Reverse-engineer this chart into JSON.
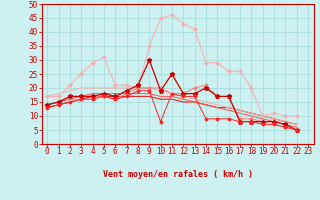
{
  "bg_color": "#cdf0f0",
  "plot_bg_color": "#cdf0f0",
  "grid_color": "#aadddd",
  "xlabel": "Vent moyen/en rafales ( km/h )",
  "xlabel_color": "#cc0000",
  "xlabel_fontsize": 6,
  "tick_color": "#cc0000",
  "tick_fontsize": 5.5,
  "xlim": [
    -0.5,
    23.5
  ],
  "ylim": [
    0,
    50
  ],
  "yticks": [
    0,
    5,
    10,
    15,
    20,
    25,
    30,
    35,
    40,
    45,
    50
  ],
  "xticks": [
    0,
    1,
    2,
    3,
    4,
    5,
    6,
    7,
    8,
    9,
    10,
    11,
    12,
    13,
    14,
    15,
    16,
    17,
    18,
    19,
    20,
    21,
    22,
    23
  ],
  "series": [
    {
      "color": "#ffaaaa",
      "marker": "D",
      "markersize": 1.5,
      "linewidth": 0.7,
      "data": [
        [
          0,
          17
        ],
        [
          1,
          17
        ],
        [
          2,
          21
        ],
        [
          3,
          25
        ],
        [
          4,
          29
        ],
        [
          5,
          31
        ],
        [
          6,
          21
        ],
        [
          7,
          21
        ],
        [
          8,
          20
        ],
        [
          9,
          35
        ],
        [
          10,
          45
        ],
        [
          11,
          46
        ],
        [
          12,
          43
        ],
        [
          13,
          41
        ],
        [
          14,
          29
        ],
        [
          15,
          29
        ],
        [
          16,
          26
        ],
        [
          17,
          26
        ],
        [
          18,
          20
        ],
        [
          19,
          10
        ],
        [
          20,
          11
        ],
        [
          21,
          10
        ],
        [
          22,
          10
        ]
      ]
    },
    {
      "color": "#ff7777",
      "marker": "D",
      "markersize": 1.5,
      "linewidth": 0.7,
      "data": [
        [
          0,
          14
        ],
        [
          1,
          15
        ],
        [
          2,
          17
        ],
        [
          3,
          17
        ],
        [
          4,
          17
        ],
        [
          5,
          17
        ],
        [
          6,
          16
        ],
        [
          7,
          18
        ],
        [
          8,
          20
        ],
        [
          9,
          20
        ],
        [
          10,
          20
        ],
        [
          11,
          18
        ],
        [
          12,
          18
        ],
        [
          13,
          20
        ],
        [
          14,
          21
        ],
        [
          15,
          17
        ],
        [
          16,
          17
        ],
        [
          17,
          9
        ],
        [
          18,
          9
        ],
        [
          19,
          8
        ],
        [
          20,
          8
        ],
        [
          21,
          7
        ],
        [
          22,
          5
        ]
      ]
    },
    {
      "color": "#cc0000",
      "marker": "*",
      "markersize": 3.5,
      "linewidth": 0.9,
      "data": [
        [
          0,
          14
        ],
        [
          1,
          15
        ],
        [
          2,
          17
        ],
        [
          3,
          17
        ],
        [
          4,
          17
        ],
        [
          5,
          18
        ],
        [
          6,
          17
        ],
        [
          7,
          19
        ],
        [
          8,
          21
        ],
        [
          9,
          30
        ],
        [
          10,
          19
        ],
        [
          11,
          25
        ],
        [
          12,
          18
        ],
        [
          13,
          18
        ],
        [
          14,
          20
        ],
        [
          15,
          17
        ],
        [
          16,
          17
        ],
        [
          17,
          8
        ],
        [
          18,
          8
        ],
        [
          19,
          8
        ],
        [
          20,
          8
        ],
        [
          21,
          7
        ],
        [
          22,
          5
        ]
      ]
    },
    {
      "color": "#ff2222",
      "marker": "D",
      "markersize": 1.5,
      "linewidth": 0.7,
      "data": [
        [
          0,
          13
        ],
        [
          1,
          14
        ],
        [
          2,
          15
        ],
        [
          3,
          16
        ],
        [
          4,
          16
        ],
        [
          5,
          17
        ],
        [
          6,
          16
        ],
        [
          7,
          17
        ],
        [
          8,
          19
        ],
        [
          9,
          19
        ],
        [
          10,
          8
        ],
        [
          11,
          18
        ],
        [
          12,
          17
        ],
        [
          13,
          17
        ],
        [
          14,
          9
        ],
        [
          15,
          9
        ],
        [
          16,
          9
        ],
        [
          17,
          8
        ],
        [
          18,
          8
        ],
        [
          19,
          7
        ],
        [
          20,
          7
        ],
        [
          21,
          6
        ],
        [
          22,
          5
        ]
      ]
    },
    {
      "color": "#dd2222",
      "marker": null,
      "linewidth": 0.8,
      "data": [
        [
          0,
          13
        ],
        [
          1,
          14
        ],
        [
          2,
          15
        ],
        [
          3,
          16
        ],
        [
          4,
          17
        ],
        [
          5,
          17
        ],
        [
          6,
          17
        ],
        [
          7,
          17
        ],
        [
          8,
          17
        ],
        [
          9,
          17
        ],
        [
          10,
          16
        ],
        [
          11,
          16
        ],
        [
          12,
          15
        ],
        [
          13,
          15
        ],
        [
          14,
          14
        ],
        [
          15,
          13
        ],
        [
          16,
          13
        ],
        [
          17,
          12
        ],
        [
          18,
          11
        ],
        [
          19,
          10
        ],
        [
          20,
          9
        ],
        [
          21,
          8
        ],
        [
          22,
          7
        ]
      ]
    },
    {
      "color": "#ff5555",
      "marker": null,
      "linewidth": 0.7,
      "data": [
        [
          0,
          14
        ],
        [
          1,
          15
        ],
        [
          2,
          16
        ],
        [
          3,
          17
        ],
        [
          4,
          18
        ],
        [
          5,
          18
        ],
        [
          6,
          18
        ],
        [
          7,
          18
        ],
        [
          8,
          18
        ],
        [
          9,
          18
        ],
        [
          10,
          17
        ],
        [
          11,
          17
        ],
        [
          12,
          16
        ],
        [
          13,
          15
        ],
        [
          14,
          14
        ],
        [
          15,
          13
        ],
        [
          16,
          12
        ],
        [
          17,
          11
        ],
        [
          18,
          10
        ],
        [
          19,
          9
        ],
        [
          20,
          8
        ],
        [
          21,
          7
        ],
        [
          22,
          6
        ]
      ]
    },
    {
      "color": "#ffaaaa",
      "marker": null,
      "linewidth": 0.7,
      "data": [
        [
          0,
          17
        ],
        [
          1,
          18
        ],
        [
          2,
          19
        ],
        [
          3,
          20
        ],
        [
          4,
          20
        ],
        [
          5,
          20
        ],
        [
          6,
          20
        ],
        [
          7,
          20
        ],
        [
          8,
          20
        ],
        [
          9,
          20
        ],
        [
          10,
          19
        ],
        [
          11,
          18
        ],
        [
          12,
          17
        ],
        [
          13,
          16
        ],
        [
          14,
          15
        ],
        [
          15,
          14
        ],
        [
          16,
          13
        ],
        [
          17,
          12
        ],
        [
          18,
          11
        ],
        [
          19,
          10
        ],
        [
          20,
          9
        ],
        [
          21,
          8
        ],
        [
          22,
          7
        ]
      ]
    }
  ],
  "arrow_color": "#cc0000"
}
